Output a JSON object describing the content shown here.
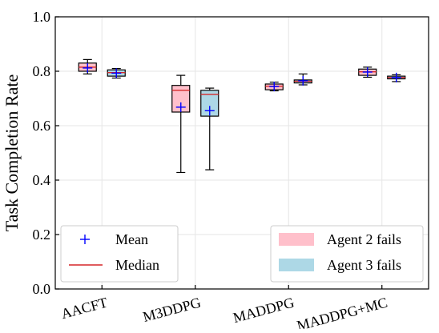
{
  "chart_data": {
    "type": "boxplot",
    "ylabel": "Task Completion Rate",
    "xlabel": "",
    "ylim": [
      0.0,
      1.0
    ],
    "yticks": [
      "0.0",
      "0.2",
      "0.4",
      "0.6",
      "0.8",
      "1.0"
    ],
    "grid": true,
    "categories": [
      "AACFT",
      "M3DDPG",
      "MADDPG",
      "MADDPG+MC"
    ],
    "series": [
      {
        "name": "Agent 2 fails",
        "color": "#ffc0cb",
        "boxes": [
          {
            "whisker_low": 0.79,
            "q1": 0.8,
            "median": 0.815,
            "q3": 0.83,
            "whisker_high": 0.843,
            "mean": 0.812
          },
          {
            "whisker_low": 0.428,
            "q1": 0.65,
            "median": 0.73,
            "q3": 0.748,
            "whisker_high": 0.785,
            "mean": 0.668
          },
          {
            "whisker_low": 0.728,
            "q1": 0.732,
            "median": 0.745,
            "q3": 0.753,
            "whisker_high": 0.76,
            "mean": 0.744
          },
          {
            "whisker_low": 0.778,
            "q1": 0.785,
            "median": 0.798,
            "q3": 0.808,
            "whisker_high": 0.815,
            "mean": 0.797
          }
        ]
      },
      {
        "name": "Agent 3 fails",
        "color": "#add8e6",
        "boxes": [
          {
            "whisker_low": 0.775,
            "q1": 0.782,
            "median": 0.795,
            "q3": 0.805,
            "whisker_high": 0.81,
            "mean": 0.793
          },
          {
            "whisker_low": 0.438,
            "q1": 0.635,
            "median": 0.715,
            "q3": 0.73,
            "whisker_high": 0.738,
            "mean": 0.655
          },
          {
            "whisker_low": 0.75,
            "q1": 0.757,
            "median": 0.763,
            "q3": 0.768,
            "whisker_high": 0.79,
            "mean": 0.765
          },
          {
            "whisker_low": 0.762,
            "q1": 0.772,
            "median": 0.777,
            "q3": 0.782,
            "whisker_high": 0.787,
            "mean": 0.777
          }
        ]
      }
    ],
    "legend_markers": {
      "mean_label": "Mean",
      "median_label": "Median",
      "mean_color": "#0000ff",
      "median_color": "#d62728",
      "placement_markers": "lower-left",
      "placement_series": "lower-right"
    }
  }
}
